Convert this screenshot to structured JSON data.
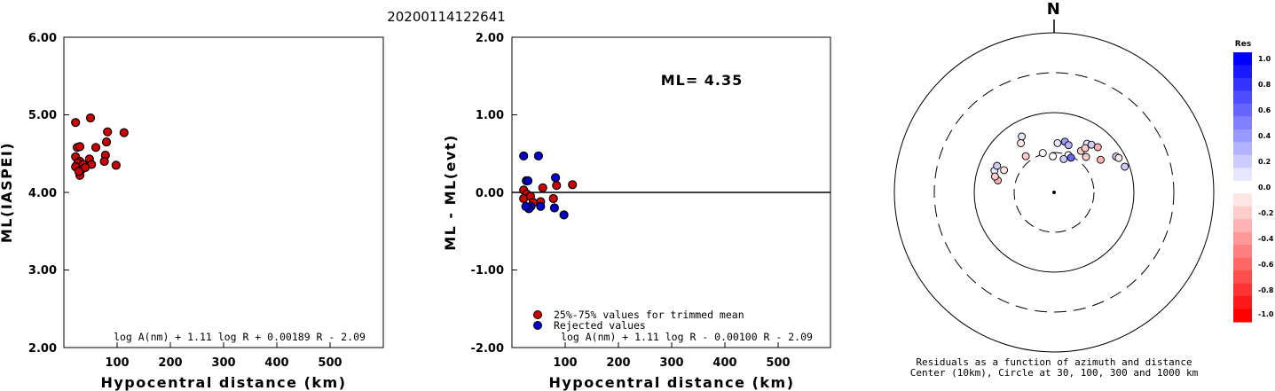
{
  "title": "20200114122641",
  "colors": {
    "red": "#cc0000",
    "blue": "#0000cc"
  },
  "chart_data": [
    {
      "type": "scatter",
      "ylabel": "ML(IASPEI)",
      "xlabel": "Hypocentral distance (km)",
      "xlim": [
        0,
        600
      ],
      "ylim": [
        2.0,
        6.0
      ],
      "xticks": [
        "100",
        "200",
        "300",
        "400",
        "500"
      ],
      "yticks": [
        "2.00",
        "3.00",
        "4.00",
        "5.00",
        "6.00"
      ],
      "formula": "log A(nm) + 1.11 log R + 0.00189 R - 2.09",
      "points": [
        [
          22,
          4.9
        ],
        [
          50,
          4.96
        ],
        [
          82,
          4.78
        ],
        [
          113,
          4.77
        ],
        [
          25,
          4.58
        ],
        [
          30,
          4.59
        ],
        [
          60,
          4.58
        ],
        [
          80,
          4.65
        ],
        [
          22,
          4.46
        ],
        [
          30,
          4.4
        ],
        [
          48,
          4.43
        ],
        [
          78,
          4.48
        ],
        [
          26,
          4.38
        ],
        [
          36,
          4.36
        ],
        [
          52,
          4.36
        ],
        [
          76,
          4.4
        ],
        [
          98,
          4.35
        ],
        [
          22,
          4.33
        ],
        [
          34,
          4.3
        ],
        [
          40,
          4.32
        ],
        [
          30,
          4.22
        ],
        [
          28,
          4.27
        ]
      ]
    },
    {
      "type": "scatter",
      "ylabel": "ML - ML(evt)",
      "xlabel": "Hypocentral distance (km)",
      "xlim": [
        0,
        600
      ],
      "ylim": [
        -2.0,
        2.0
      ],
      "xticks": [
        "100",
        "200",
        "300",
        "400",
        "500"
      ],
      "yticks": [
        "-2.00",
        "-1.00",
        "0.00",
        "1.00",
        "2.00"
      ],
      "ml_label": "ML= 4.35",
      "formula": "log A(nm) + 1.11 log R - 0.00100 R - 2.09",
      "legend": [
        "25%-75% values for trimmed mean",
        "Rejected values"
      ],
      "series": [
        {
          "name": "25%-75% values for trimmed mean",
          "points": [
            [
              22,
              0.03
            ],
            [
              28,
              -0.02
            ],
            [
              58,
              0.06
            ],
            [
              84,
              0.09
            ],
            [
              114,
              0.1
            ],
            [
              22,
              -0.08
            ],
            [
              35,
              -0.05
            ],
            [
              54,
              -0.12
            ],
            [
              78,
              -0.08
            ],
            [
              40,
              -0.13
            ]
          ]
        },
        {
          "name": "Rejected values",
          "points": [
            [
              22,
              0.47
            ],
            [
              50,
              0.47
            ],
            [
              27,
              0.15
            ],
            [
              82,
              0.19
            ],
            [
              30,
              0.15
            ],
            [
              36,
              -0.18
            ],
            [
              54,
              -0.18
            ],
            [
              80,
              -0.2
            ],
            [
              98,
              -0.29
            ],
            [
              32,
              -0.21
            ],
            [
              26,
              -0.18
            ]
          ]
        }
      ]
    },
    {
      "type": "polar",
      "north_label": "N",
      "caption": [
        "Residuals as a function of azimuth and distance",
        "Center (10km), Circle at 30, 100, 300 and 1000 km"
      ],
      "rings_km": [
        30,
        100,
        300,
        1000
      ],
      "colorbar": {
        "title": "Res",
        "labels": [
          "1.0",
          "0.8",
          "0.6",
          "0.4",
          "0.2",
          "0.0",
          "-0.2",
          "-0.4",
          "-0.6",
          "-0.8",
          "-1.0"
        ]
      },
      "points": [
        [
          330,
          63,
          0.1
        ],
        [
          326,
          54,
          -0.1
        ],
        [
          322,
          36,
          -0.2
        ],
        [
          4,
          40,
          0.1
        ],
        [
          12,
          43,
          0.4
        ],
        [
          17,
          40,
          0.3
        ],
        [
          34,
          53,
          0.1
        ],
        [
          38,
          56,
          0.2
        ],
        [
          44,
          60,
          -0.3
        ],
        [
          60,
          78,
          0.2
        ],
        [
          62,
          82,
          -0.1
        ],
        [
          70,
          87,
          0.2
        ],
        [
          290,
          61,
          0.1
        ],
        [
          295,
          60,
          0.2
        ],
        [
          282,
          51,
          -0.3
        ],
        [
          285,
          57,
          -0.2
        ],
        [
          294,
          47,
          -0.1
        ],
        [
          344,
          31,
          0.0
        ],
        [
          358,
          27,
          0.0
        ],
        [
          21,
          30,
          0.0
        ],
        [
          16,
          26,
          0.2
        ],
        [
          26,
          29,
          0.6
        ],
        [
          33,
          40,
          -0.2
        ],
        [
          35,
          46,
          -0.2
        ],
        [
          55,
          50,
          -0.3
        ],
        [
          42,
          38,
          -0.2
        ]
      ]
    }
  ]
}
